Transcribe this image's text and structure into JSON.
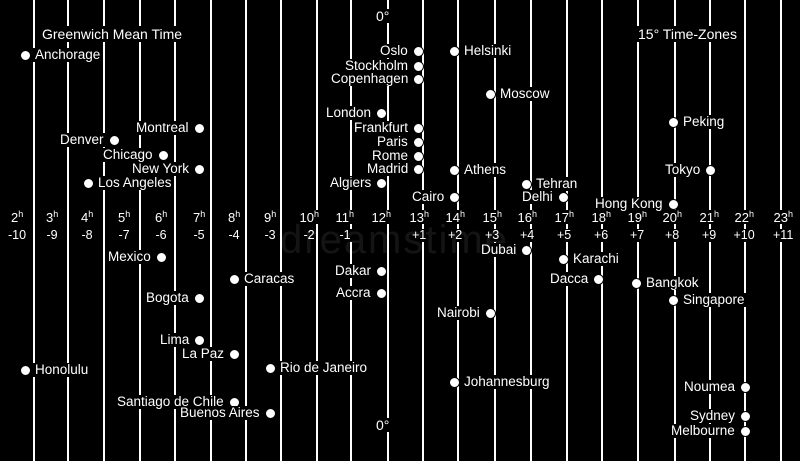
{
  "titles": {
    "gmt": "Greenwich Mean Time",
    "zones": "15° Time-Zones",
    "meridian_top": "0°",
    "meridian_bottom": "0°"
  },
  "hours": [
    "2",
    "3",
    "4",
    "5",
    "6",
    "7",
    "8",
    "9",
    "10",
    "11",
    "12",
    "13",
    "14",
    "15",
    "16",
    "17",
    "18",
    "19",
    "20",
    "21",
    "22",
    "23"
  ],
  "hour_suffix": "h",
  "offsets": [
    "-10",
    "-9",
    "-8",
    "-7",
    "-6",
    "-5",
    "-4",
    "-3",
    "-2",
    "-1",
    "",
    "+1",
    "+2",
    "+3",
    "+4",
    "+5",
    "+6",
    "+7",
    "+8",
    "+9",
    "+10",
    "+11"
  ],
  "cities": [
    {
      "name": "Anchorage",
      "label_side": "right"
    },
    {
      "name": "Oslo",
      "label_side": "left"
    },
    {
      "name": "Helsinki",
      "label_side": "right"
    },
    {
      "name": "Stockholm",
      "label_side": "left"
    },
    {
      "name": "Copenhagen",
      "label_side": "left"
    },
    {
      "name": "Moscow",
      "label_side": "right"
    },
    {
      "name": "London",
      "label_side": "left"
    },
    {
      "name": "Montreal",
      "label_side": "left"
    },
    {
      "name": "Peking",
      "label_side": "right"
    },
    {
      "name": "Frankfurt",
      "label_side": "left"
    },
    {
      "name": "Denver",
      "label_side": "left"
    },
    {
      "name": "Paris",
      "label_side": "left"
    },
    {
      "name": "Chicago",
      "label_side": "left"
    },
    {
      "name": "Rome",
      "label_side": "left"
    },
    {
      "name": "New York",
      "label_side": "left"
    },
    {
      "name": "Madrid",
      "label_side": "left"
    },
    {
      "name": "Athens",
      "label_side": "right"
    },
    {
      "name": "Tokyo",
      "label_side": "left"
    },
    {
      "name": "Los Angeles",
      "label_side": "right"
    },
    {
      "name": "Algiers",
      "label_side": "left"
    },
    {
      "name": "Tehran",
      "label_side": "right"
    },
    {
      "name": "Cairo",
      "label_side": "left"
    },
    {
      "name": "Delhi",
      "label_side": "left"
    },
    {
      "name": "Hong Kong",
      "label_side": "left"
    },
    {
      "name": "Mexico",
      "label_side": "left"
    },
    {
      "name": "Dubai",
      "label_side": "left"
    },
    {
      "name": "Karachi",
      "label_side": "right"
    },
    {
      "name": "Dakar",
      "label_side": "left"
    },
    {
      "name": "Caracas",
      "label_side": "right"
    },
    {
      "name": "Dacca",
      "label_side": "left"
    },
    {
      "name": "Bangkok",
      "label_side": "right"
    },
    {
      "name": "Accra",
      "label_side": "left"
    },
    {
      "name": "Bogota",
      "label_side": "left"
    },
    {
      "name": "Singapore",
      "label_side": "right"
    },
    {
      "name": "Nairobi",
      "label_side": "left"
    },
    {
      "name": "Lima",
      "label_side": "left"
    },
    {
      "name": "La Paz",
      "label_side": "left"
    },
    {
      "name": "Rio de Janeiro",
      "label_side": "right"
    },
    {
      "name": "Honolulu",
      "label_side": "right"
    },
    {
      "name": "Johannesburg",
      "label_side": "right"
    },
    {
      "name": "Santiago de Chile",
      "label_side": "left"
    },
    {
      "name": "Noumea",
      "label_side": "left"
    },
    {
      "name": "Buenos Aires",
      "label_side": "left"
    },
    {
      "name": "Sydney",
      "label_side": "left"
    },
    {
      "name": "Melbourne",
      "label_side": "left"
    }
  ],
  "watermark": "dreamstime"
}
